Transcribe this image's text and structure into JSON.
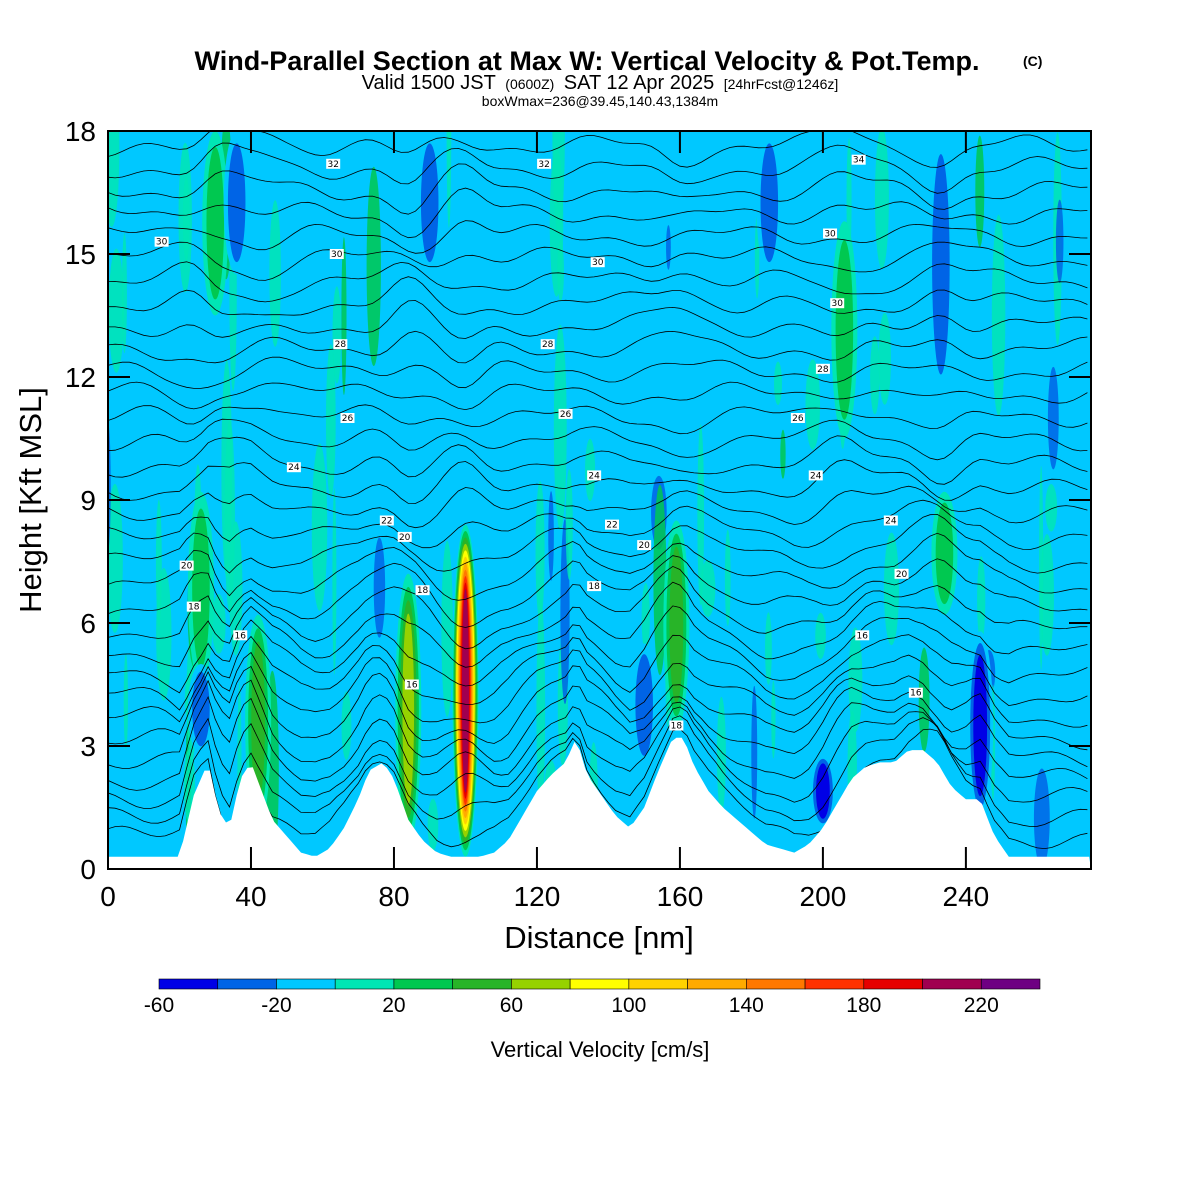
{
  "chart_data": {
    "type": "heatmap",
    "title": "Wind-Parallel Section at Max W: Vertical Velocity & Pot.Temp.",
    "title_mark": "(C)",
    "subtitle": {
      "part1": "Valid 1500 JST",
      "part2": "(0600Z)",
      "part3": "SAT 12 Apr 2025",
      "part4": "[24hrFcst@1246z]"
    },
    "subtitle2": "boxWmax=236@39.45,140.43,1384m",
    "xlabel": "Distance [nm]",
    "ylabel": "Height [Kft MSL]",
    "xlim": [
      0,
      275
    ],
    "ylim": [
      0,
      18
    ],
    "x_ticks": [
      0,
      40,
      80,
      120,
      160,
      200,
      240
    ],
    "y_ticks": [
      0,
      3,
      6,
      9,
      12,
      15,
      18
    ],
    "colorbar": {
      "label": "Vertical Velocity [cm/s]",
      "levels": [
        -60,
        -40,
        -20,
        0,
        20,
        40,
        60,
        80,
        100,
        120,
        140,
        160,
        180,
        200,
        220,
        240
      ],
      "tick_labels": [
        "-60",
        "-20",
        "20",
        "60",
        "100",
        "140",
        "180",
        "220"
      ],
      "tick_values": [
        -60,
        -20,
        20,
        60,
        100,
        140,
        180,
        220
      ],
      "colors": [
        "#0000e6",
        "#0064e6",
        "#00c8ff",
        "#00e6b4",
        "#00c850",
        "#28b428",
        "#96d200",
        "#ffff00",
        "#ffd200",
        "#ffaa00",
        "#ff7800",
        "#ff3200",
        "#e60000",
        "#a00050",
        "#6e0082"
      ]
    },
    "background_color": "#00c8ff",
    "updrafts": [
      {
        "x": 100,
        "z": [
          0.3,
          8.4
        ],
        "w": 200
      },
      {
        "x": 84,
        "z": [
          0.6,
          7.2
        ],
        "w": 70
      },
      {
        "x": 159,
        "z": [
          3.4,
          8.5
        ],
        "w": 40
      },
      {
        "x": 42,
        "z": [
          1.0,
          6.2
        ],
        "w": 40
      },
      {
        "x": 26,
        "z": [
          4.5,
          9.2
        ],
        "w": 25
      },
      {
        "x": 234,
        "z": [
          6.2,
          9.2
        ],
        "w": 30
      },
      {
        "x": 206,
        "z": [
          10.5,
          15.8
        ],
        "w": 25
      },
      {
        "x": 30,
        "z": [
          13.5,
          18
        ],
        "w": 25
      }
    ],
    "downdrafts": [
      {
        "x": 26,
        "z": [
          2.8,
          5.0
        ],
        "w": -30
      },
      {
        "x": 200,
        "z": [
          1.0,
          2.8
        ],
        "w": -55
      },
      {
        "x": 244,
        "z": [
          1.2,
          5.8
        ],
        "w": -45
      },
      {
        "x": 150,
        "z": [
          2.5,
          5.5
        ],
        "w": -30
      },
      {
        "x": 233,
        "z": [
          11.5,
          18
        ],
        "w": -40
      },
      {
        "x": 185,
        "z": [
          14.5,
          18
        ],
        "w": -30
      },
      {
        "x": 90,
        "z": [
          14.5,
          18
        ],
        "w": -30
      },
      {
        "x": 36,
        "z": [
          14.5,
          18
        ],
        "w": -30
      }
    ],
    "terrain_x": [
      0,
      20,
      24,
      28,
      31,
      34,
      37,
      40,
      43,
      46,
      50,
      54,
      58,
      62,
      66,
      70,
      73,
      77,
      80,
      84,
      88,
      92,
      96,
      100,
      104,
      108,
      112,
      116,
      120,
      124,
      128,
      131,
      134,
      138,
      142,
      146,
      150,
      154,
      158,
      161,
      164,
      168,
      172,
      176,
      180,
      184,
      188,
      192,
      196,
      200,
      204,
      208,
      212,
      216,
      220,
      224,
      228,
      232,
      236,
      240,
      244,
      248,
      252,
      256,
      262,
      268,
      275
    ],
    "terrain_z": [
      0.3,
      0.3,
      1.8,
      2.6,
      1.4,
      1.0,
      2.2,
      2.6,
      1.9,
      1.2,
      0.8,
      0.4,
      0.3,
      0.5,
      1.0,
      1.7,
      2.4,
      2.6,
      2.2,
      1.2,
      0.7,
      0.4,
      0.3,
      0.3,
      0.3,
      0.4,
      0.7,
      1.3,
      1.9,
      2.3,
      2.6,
      3.2,
      2.3,
      1.8,
      1.3,
      1.0,
      1.5,
      2.4,
      3.2,
      3.2,
      2.5,
      1.9,
      1.5,
      1.2,
      0.9,
      0.6,
      0.5,
      0.4,
      0.6,
      1.0,
      1.6,
      2.2,
      2.5,
      2.6,
      2.6,
      2.9,
      2.9,
      2.6,
      2.0,
      1.7,
      1.7,
      0.8,
      0.3,
      0.3,
      0.3,
      0.3,
      0.3
    ],
    "isentrope_labels": [
      {
        "x": 63,
        "z": 17.2,
        "text": "32"
      },
      {
        "x": 122,
        "z": 17.2,
        "text": "32"
      },
      {
        "x": 210,
        "z": 17.3,
        "text": "34"
      },
      {
        "x": 15,
        "z": 15.3,
        "text": "30"
      },
      {
        "x": 64,
        "z": 15.0,
        "text": "30"
      },
      {
        "x": 137,
        "z": 14.8,
        "text": "30"
      },
      {
        "x": 202,
        "z": 15.5,
        "text": "30"
      },
      {
        "x": 204,
        "z": 13.8,
        "text": "30"
      },
      {
        "x": 65,
        "z": 12.8,
        "text": "28"
      },
      {
        "x": 123,
        "z": 12.8,
        "text": "28"
      },
      {
        "x": 200,
        "z": 12.2,
        "text": "28"
      },
      {
        "x": 67,
        "z": 11.0,
        "text": "26"
      },
      {
        "x": 128,
        "z": 11.1,
        "text": "26"
      },
      {
        "x": 193,
        "z": 11.0,
        "text": "26"
      },
      {
        "x": 52,
        "z": 9.8,
        "text": "24"
      },
      {
        "x": 136,
        "z": 9.6,
        "text": "24"
      },
      {
        "x": 198,
        "z": 9.6,
        "text": "24"
      },
      {
        "x": 78,
        "z": 8.5,
        "text": "22"
      },
      {
        "x": 141,
        "z": 8.4,
        "text": "22"
      },
      {
        "x": 219,
        "z": 8.5,
        "text": "24"
      },
      {
        "x": 83,
        "z": 8.1,
        "text": "20"
      },
      {
        "x": 150,
        "z": 7.9,
        "text": "20"
      },
      {
        "x": 22,
        "z": 7.4,
        "text": "20"
      },
      {
        "x": 222,
        "z": 7.2,
        "text": "20"
      },
      {
        "x": 136,
        "z": 6.9,
        "text": "18"
      },
      {
        "x": 24,
        "z": 6.4,
        "text": "18"
      },
      {
        "x": 88,
        "z": 6.8,
        "text": "18"
      },
      {
        "x": 37,
        "z": 5.7,
        "text": "16"
      },
      {
        "x": 211,
        "z": 5.7,
        "text": "16"
      },
      {
        "x": 85,
        "z": 4.5,
        "text": "16"
      },
      {
        "x": 226,
        "z": 4.3,
        "text": "16"
      },
      {
        "x": 159,
        "z": 3.5,
        "text": "18"
      }
    ]
  }
}
